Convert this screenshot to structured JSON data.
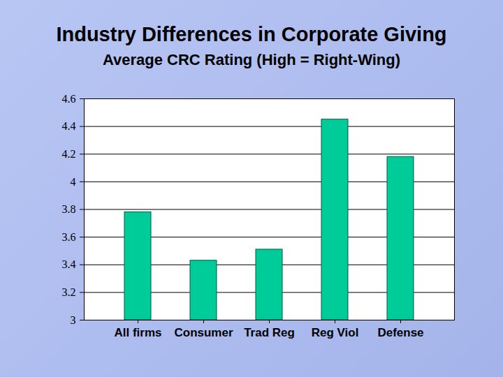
{
  "chart_data": {
    "type": "bar",
    "title": "Industry Differences in Corporate Giving",
    "subtitle": "Average CRC Rating (High = Right-Wing)",
    "categories": [
      "All firms",
      "Consumer",
      "Trad Reg",
      "Reg Viol",
      "Defense"
    ],
    "values": [
      3.78,
      3.43,
      3.51,
      4.45,
      4.18
    ],
    "color": "#00cc99",
    "ylim": [
      3,
      4.6
    ],
    "yticks": [
      3,
      3.2,
      3.4,
      3.6,
      3.8,
      4,
      4.2,
      4.4,
      4.6
    ],
    "grid": true
  }
}
